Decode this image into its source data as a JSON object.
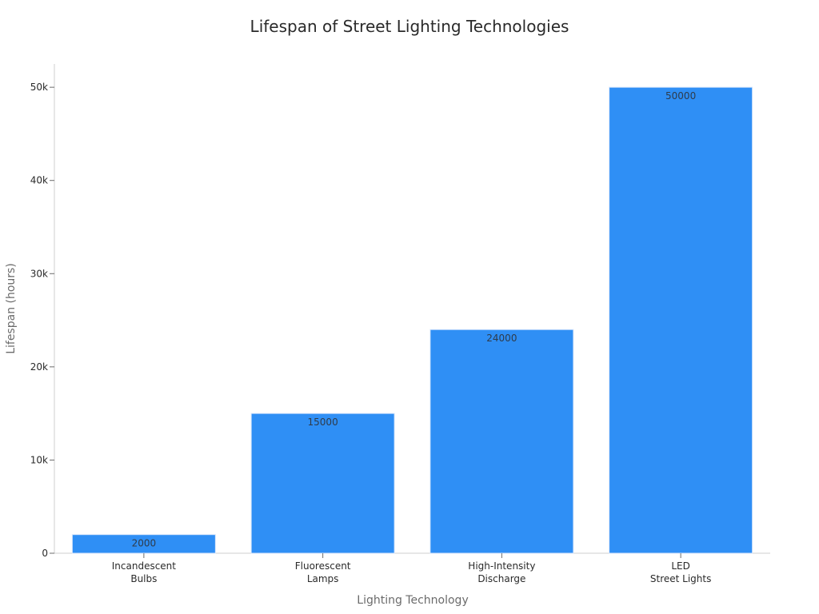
{
  "chart_data": {
    "type": "bar",
    "title": "Lifespan of Street Lighting Technologies",
    "xlabel": "Lighting Technology",
    "ylabel": "Lifespan (hours)",
    "categories": [
      [
        "Incandescent",
        "Bulbs"
      ],
      [
        "Fluorescent",
        "Lamps"
      ],
      [
        "High-Intensity",
        "Discharge"
      ],
      [
        "LED",
        "Street Lights"
      ]
    ],
    "values": [
      2000,
      15000,
      24000,
      50000
    ],
    "data_labels": [
      "2000",
      "15000",
      "24000",
      "50000"
    ],
    "ylim": [
      0,
      52500
    ],
    "y_ticks": [
      0,
      10000,
      20000,
      30000,
      40000,
      50000
    ],
    "y_tick_labels": [
      "0",
      "10k",
      "20k",
      "30k",
      "40k",
      "50k"
    ],
    "grid": false,
    "legend": "none",
    "colors": {
      "bar_fill": "#2f8ff5",
      "bar_stroke": "#d8e6fb"
    }
  }
}
